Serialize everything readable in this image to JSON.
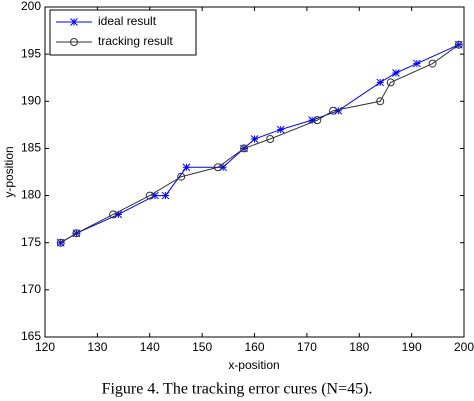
{
  "chart_data": {
    "type": "line",
    "xlabel": "x-position",
    "ylabel": "y-position",
    "caption": "Figure 4. The tracking error cures (N=45).",
    "xlim": [
      120,
      200
    ],
    "xticks": [
      120,
      130,
      140,
      150,
      160,
      170,
      180,
      190,
      200
    ],
    "ylim": [
      165,
      200
    ],
    "yticks": [
      165,
      170,
      175,
      180,
      185,
      190,
      195,
      200
    ],
    "grid": false,
    "legend": "upper left",
    "series": [
      {
        "name": "ideal result",
        "color": "#0000ff",
        "marker": "star",
        "x": [
          123,
          126,
          134,
          141,
          143,
          147,
          154,
          158,
          160,
          165,
          171,
          176,
          184,
          187,
          191,
          199
        ],
        "values": [
          175,
          176,
          178,
          180,
          180,
          183,
          183,
          185,
          186,
          187,
          188,
          189,
          192,
          193,
          194,
          196
        ]
      },
      {
        "name": "tracking result",
        "color": "#333333",
        "marker": "circle",
        "x": [
          123,
          126,
          133,
          140,
          146,
          153,
          158,
          163,
          172,
          175,
          184,
          186,
          194,
          199
        ],
        "values": [
          175,
          176,
          178,
          180,
          182,
          183,
          185,
          186,
          188,
          189,
          190,
          192,
          194,
          196
        ]
      }
    ]
  }
}
